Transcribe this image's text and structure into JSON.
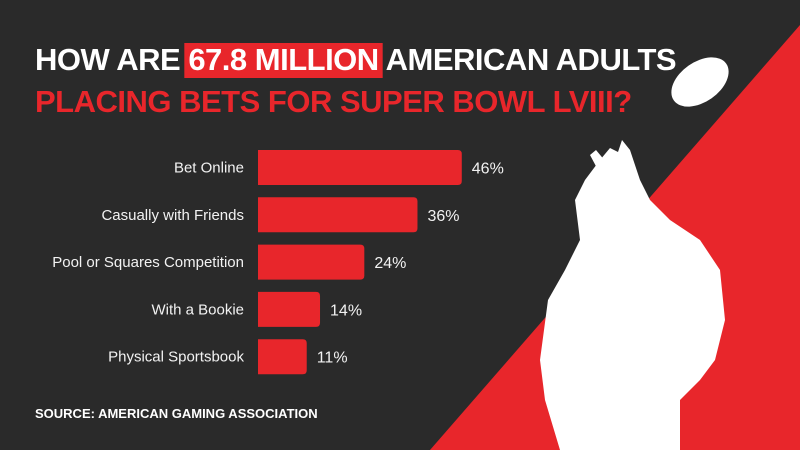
{
  "chart_data": {
    "type": "bar",
    "orientation": "horizontal",
    "title_parts": [
      "HOW ARE",
      "67.8 MILLION",
      "AMERICAN ADULTS",
      "PLACING BETS FOR SUPER BOWL LVIII?"
    ],
    "categories": [
      "Bet Online",
      "Casually with Friends",
      "Pool or Squares Competition",
      "With a Bookie",
      "Physical Sportsbook"
    ],
    "values": [
      46,
      36,
      24,
      14,
      11
    ],
    "value_labels": [
      "46%",
      "36%",
      "24%",
      "14%",
      "11%"
    ],
    "color": "#e8262b",
    "source": "SOURCE: AMERICAN GAMING ASSOCIATION"
  }
}
